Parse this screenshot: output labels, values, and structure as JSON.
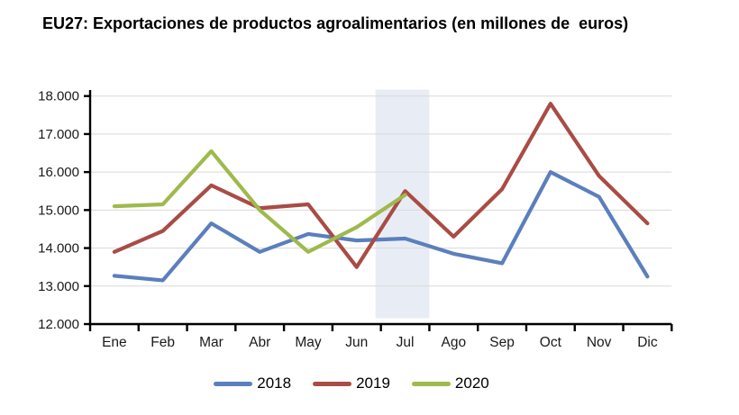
{
  "title": "EU27: Exportaciones de productos agroalimentarios (en millones de  euros)",
  "chart_data": {
    "type": "line",
    "title": "EU27: Exportaciones de productos agroalimentarios (en millones de  euros)",
    "categories": [
      "Ene",
      "Feb",
      "Mar",
      "Abr",
      "May",
      "Jun",
      "Jul",
      "Ago",
      "Sep",
      "Oct",
      "Nov",
      "Dic"
    ],
    "series": [
      {
        "name": "2018",
        "color": "#5b7fbd",
        "values": [
          13270,
          13150,
          14650,
          13900,
          14370,
          14200,
          14250,
          13850,
          13600,
          16000,
          15350,
          13250
        ]
      },
      {
        "name": "2019",
        "color": "#a94c45",
        "values": [
          13900,
          14450,
          15650,
          15050,
          15150,
          13500,
          15500,
          14300,
          15550,
          17800,
          15900,
          14650
        ]
      },
      {
        "name": "2020",
        "color": "#9fb94c",
        "values": [
          15100,
          15150,
          16550,
          15000,
          13900,
          14550,
          15400,
          null,
          null,
          null,
          null,
          null
        ]
      }
    ],
    "ylim": [
      12000,
      18000
    ],
    "ytick_step": 1000,
    "ytick_labels": [
      "12.000",
      "13.000",
      "14.000",
      "15.000",
      "16.000",
      "17.000",
      "18.000"
    ],
    "xlabel": "",
    "ylabel": "",
    "grid": true,
    "legend_position": "bottom",
    "highlight_band": {
      "category": "Jul",
      "color": "#e8edf5"
    },
    "colors": {
      "axis": "#000000",
      "gridline": "#d9d9d9",
      "text": "#1a1a1a",
      "background": "#ffffff"
    }
  }
}
